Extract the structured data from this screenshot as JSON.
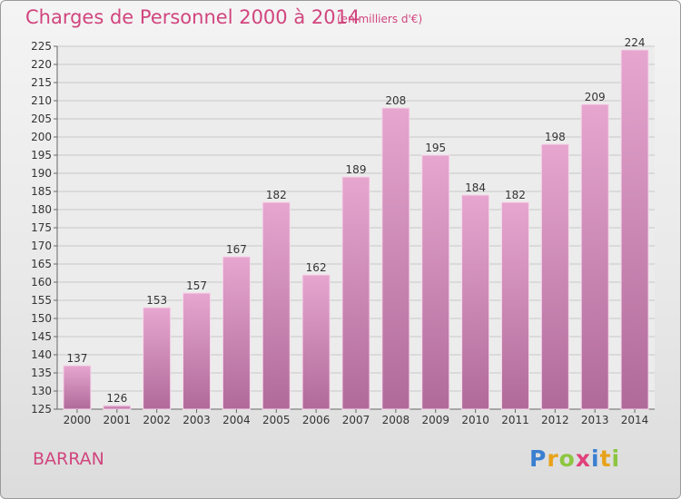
{
  "title": "Charges de Personnel 2000 à 2014",
  "subtitle": "(en milliers d'€)",
  "place": "BARRAN",
  "logo": {
    "text": "Proxiti",
    "letters": [
      {
        "ch": "P",
        "color": "#3a7fd0"
      },
      {
        "ch": "r",
        "color": "#e8a21a"
      },
      {
        "ch": "o",
        "color": "#8cc63f"
      },
      {
        "ch": "x",
        "color": "#e0407a"
      },
      {
        "ch": "i",
        "color": "#3a7fd0"
      },
      {
        "ch": "t",
        "color": "#e8a21a"
      },
      {
        "ch": "i",
        "color": "#8cc63f"
      }
    ]
  },
  "colors": {
    "accent": "#d1457e",
    "bar_top": "#e6a6cf",
    "bar_bottom": "#b06a9a",
    "grid": "#c8c8c8"
  },
  "chart_data": {
    "type": "bar",
    "categories": [
      "2000",
      "2001",
      "2002",
      "2003",
      "2004",
      "2005",
      "2006",
      "2007",
      "2008",
      "2009",
      "2010",
      "2011",
      "2012",
      "2013",
      "2014"
    ],
    "values": [
      137,
      126,
      153,
      157,
      167,
      182,
      162,
      189,
      208,
      195,
      184,
      182,
      198,
      209,
      224
    ],
    "ylim": [
      125,
      225
    ],
    "yticks": [
      125,
      130,
      135,
      140,
      145,
      150,
      155,
      160,
      165,
      170,
      175,
      180,
      185,
      190,
      195,
      200,
      205,
      210,
      215,
      220,
      225
    ],
    "grid": true,
    "data_labels": true
  }
}
